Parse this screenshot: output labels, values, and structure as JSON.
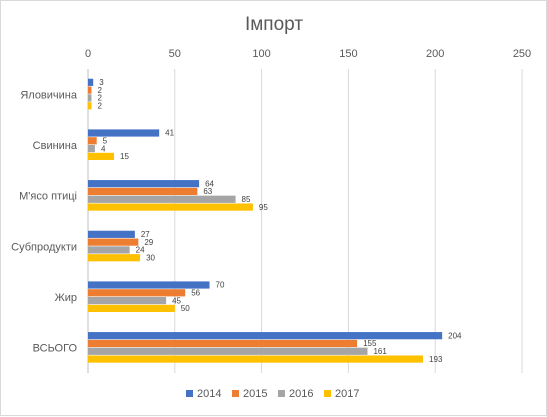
{
  "chart_data": {
    "type": "bar",
    "orientation": "horizontal",
    "title": "Імпорт",
    "categories": [
      "Яловичина",
      "Свинина",
      "М'ясо птиці",
      "Субпродукти",
      "Жир",
      "ВСЬОГО"
    ],
    "series": [
      {
        "name": "2014",
        "color": "#4472c4",
        "values": [
          3,
          41,
          64,
          27,
          70,
          204
        ]
      },
      {
        "name": "2015",
        "color": "#ed7d31",
        "values": [
          2,
          5,
          63,
          29,
          56,
          155
        ]
      },
      {
        "name": "2016",
        "color": "#a5a5a5",
        "values": [
          2,
          4,
          85,
          24,
          45,
          161
        ]
      },
      {
        "name": "2017",
        "color": "#ffc000",
        "values": [
          2,
          15,
          95,
          30,
          50,
          193
        ]
      }
    ],
    "xlim": [
      0,
      250
    ],
    "xticks": [
      0,
      50,
      100,
      150,
      200,
      250
    ],
    "grid": true,
    "legend_position": "bottom",
    "xlabel": "",
    "ylabel": ""
  }
}
